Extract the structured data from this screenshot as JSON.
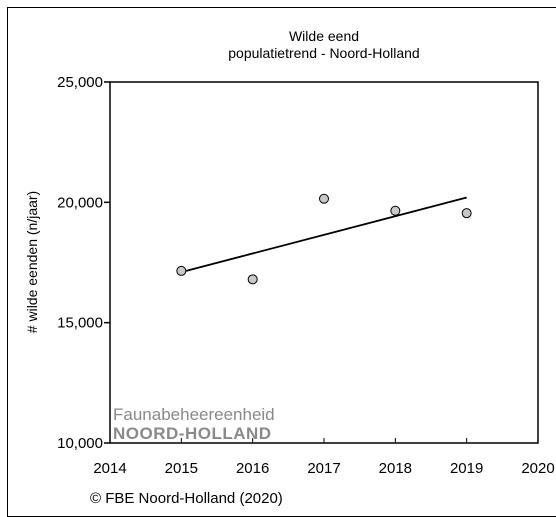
{
  "chart_data": {
    "type": "scatter",
    "title": "Wilde eend",
    "subtitle": "populatietrend - Noord-Holland",
    "xlabel": "",
    "ylabel": "# wilde eenden (n/jaar)",
    "xlim": [
      2014,
      2020
    ],
    "ylim": [
      10000,
      25000
    ],
    "x_ticks": [
      "2014",
      "2015",
      "2016",
      "2017",
      "2018",
      "2019",
      "2020"
    ],
    "y_ticks": [
      "10,000",
      "15,000",
      "20,000",
      "25,000"
    ],
    "grid": false,
    "series": [
      {
        "x": [
          2015,
          2016,
          2017,
          2018,
          2019
        ],
        "y": [
          17150,
          16800,
          20150,
          19650,
          19550
        ]
      }
    ],
    "trendline": {
      "x": [
        2015,
        2019
      ],
      "y": [
        17100,
        20200
      ]
    },
    "marker_color": "#c8c8c8",
    "line_color": "#000000"
  },
  "logo": {
    "line1": "Faunabeheereenheid",
    "line2": "NOORD-HOLLAND"
  },
  "credit": "© FBE Noord-Holland (2020)"
}
